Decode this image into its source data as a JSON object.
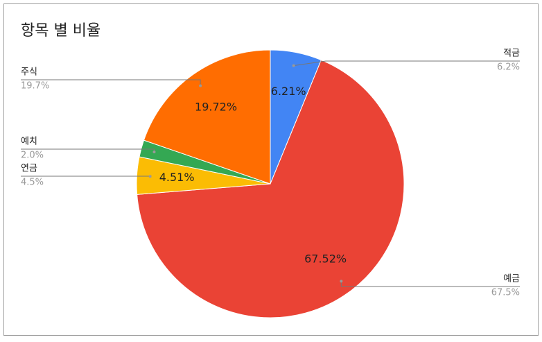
{
  "chart_data": {
    "type": "pie",
    "title": "항목 별 비율",
    "categories": [
      "적금",
      "예금",
      "연금",
      "예치",
      "주식"
    ],
    "values": [
      6.21,
      67.52,
      4.51,
      2.04,
      19.72
    ],
    "value_labels": [
      "6.21%",
      "67.52%",
      "4.51%",
      null,
      "19.72%"
    ],
    "outer_labels": [
      "6.2%",
      "67.5%",
      "4.5%",
      "2.0%",
      "19.7%"
    ],
    "colors": [
      "#4285f4",
      "#ea4335",
      "#fbbc04",
      "#34a853",
      "#ff6d01"
    ]
  }
}
